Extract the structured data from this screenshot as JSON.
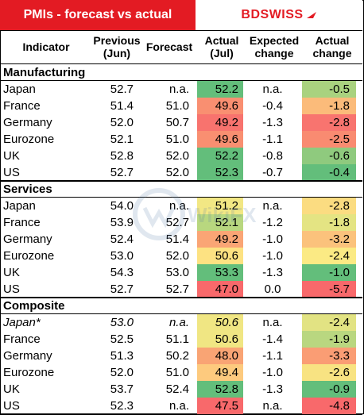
{
  "title": "PMIs - forecast vs actual",
  "logo": {
    "bd": "BD",
    "swiss": "SWISS"
  },
  "columns": {
    "indicator": "Indicator",
    "previous": [
      "Previous",
      "(Jun)"
    ],
    "forecast": "Forecast",
    "actual": [
      "Actual",
      "(Jul)"
    ],
    "expected": [
      "Expected",
      "change"
    ],
    "actual_change": [
      "Actual",
      "change"
    ]
  },
  "watermark": "WikiFX",
  "sections": [
    {
      "name": "Manufacturing",
      "rows": [
        {
          "indicator": "Japan",
          "previous": "52.7",
          "forecast": "n.a.",
          "actual": "52.2",
          "expected": "n.a.",
          "change": "-0.5",
          "actual_color": "#63be7b",
          "change_color": "#a9d27f"
        },
        {
          "indicator": "France",
          "previous": "51.4",
          "forecast": "51.0",
          "actual": "49.6",
          "expected": "-0.4",
          "change": "-1.8",
          "actual_color": "#f98f71",
          "change_color": "#fbbb7a"
        },
        {
          "indicator": "Germany",
          "previous": "52.0",
          "forecast": "50.7",
          "actual": "49.2",
          "expected": "-1.3",
          "change": "-2.8",
          "actual_color": "#f8736e",
          "change_color": "#f8746f"
        },
        {
          "indicator": "Eurozone",
          "previous": "52.1",
          "forecast": "51.0",
          "actual": "49.6",
          "expected": "-1.1",
          "change": "-2.5",
          "actual_color": "#f98f71",
          "change_color": "#f98b71"
        },
        {
          "indicator": "UK",
          "previous": "52.8",
          "forecast": "52.0",
          "actual": "52.2",
          "expected": "-0.8",
          "change": "-0.6",
          "actual_color": "#63be7b",
          "change_color": "#8fca7e"
        },
        {
          "indicator": "US",
          "previous": "52.7",
          "forecast": "52.0",
          "actual": "52.3",
          "expected": "-0.7",
          "change": "-0.4",
          "actual_color": "#63be7b",
          "change_color": "#63be7b"
        }
      ]
    },
    {
      "name": "Services",
      "rows": [
        {
          "indicator": "Japan",
          "previous": "54.0",
          "forecast": "n.a.",
          "actual": "51.2",
          "expected": "n.a.",
          "change": "-2.8",
          "actual_color": "#f2e784",
          "change_color": "#fbdc81"
        },
        {
          "indicator": "France",
          "previous": "53.9",
          "forecast": "52.7",
          "actual": "52.1",
          "expected": "-1.2",
          "change": "-1.8",
          "actual_color": "#b8d77f",
          "change_color": "#e4e483"
        },
        {
          "indicator": "Germany",
          "previous": "52.4",
          "forecast": "51.4",
          "actual": "49.2",
          "expected": "-1.0",
          "change": "-3.2",
          "actual_color": "#faa575",
          "change_color": "#fbc27c"
        },
        {
          "indicator": "Eurozone",
          "previous": "53.0",
          "forecast": "52.0",
          "actual": "50.6",
          "expected": "-1.0",
          "change": "-2.4",
          "actual_color": "#fde282",
          "change_color": "#fbea84"
        },
        {
          "indicator": "UK",
          "previous": "54.3",
          "forecast": "53.0",
          "actual": "53.3",
          "expected": "-1.3",
          "change": "-1.0",
          "actual_color": "#63be7b",
          "change_color": "#63be7b"
        },
        {
          "indicator": "US",
          "previous": "52.7",
          "forecast": "52.7",
          "actual": "47.0",
          "expected": "0.0",
          "change": "-5.7",
          "actual_color": "#f8696b",
          "change_color": "#f8696b"
        }
      ]
    },
    {
      "name": "Composite",
      "rows": [
        {
          "indicator": "Japan*",
          "previous": "53.0",
          "forecast": "n.a.",
          "actual": "50.6",
          "expected": "n.a.",
          "change": "-2.4",
          "actual_color": "#f0e683",
          "change_color": "#e2e383",
          "italic": true
        },
        {
          "indicator": "France",
          "previous": "52.5",
          "forecast": "51.1",
          "actual": "50.6",
          "expected": "-1.4",
          "change": "-1.9",
          "actual_color": "#f0e683",
          "change_color": "#b9d780"
        },
        {
          "indicator": "Germany",
          "previous": "51.3",
          "forecast": "50.2",
          "actual": "48.0",
          "expected": "-1.1",
          "change": "-3.3",
          "actual_color": "#f9a474",
          "change_color": "#fa9d74"
        },
        {
          "indicator": "Eurozone",
          "previous": "52.0",
          "forecast": "51.0",
          "actual": "49.4",
          "expected": "-1.0",
          "change": "-2.6",
          "actual_color": "#fdca7e",
          "change_color": "#f8e382"
        },
        {
          "indicator": "UK",
          "previous": "53.7",
          "forecast": "52.4",
          "actual": "52.8",
          "expected": "-1.3",
          "change": "-0.9",
          "actual_color": "#63be7b",
          "change_color": "#63be7b"
        },
        {
          "indicator": "US",
          "previous": "52.3",
          "forecast": "n.a.",
          "actual": "47.5",
          "expected": "n.a.",
          "change": "-4.8",
          "actual_color": "#f8696b",
          "change_color": "#f8696b"
        }
      ]
    }
  ]
}
